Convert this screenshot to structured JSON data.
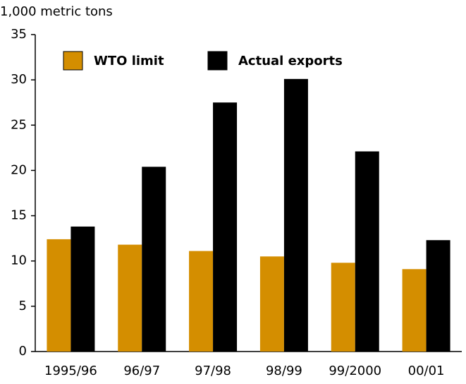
{
  "chart_data": {
    "type": "bar",
    "y_label": "1,000 metric tons",
    "categories": [
      "1995/96",
      "96/97",
      "97/98",
      "98/99",
      "99/2000",
      "00/01"
    ],
    "series": [
      {
        "name": "WTO limit",
        "color": "#d48e00",
        "values": [
          12.4,
          11.8,
          11.1,
          10.5,
          9.8,
          9.1
        ]
      },
      {
        "name": "Actual exports",
        "color": "#000000",
        "values": [
          13.8,
          20.4,
          27.5,
          30.1,
          22.1,
          12.3
        ]
      }
    ],
    "ylim": [
      0,
      35
    ],
    "yticks": [
      0,
      5,
      10,
      15,
      20,
      25,
      30,
      35
    ],
    "grid": false,
    "legend": "upper left"
  }
}
